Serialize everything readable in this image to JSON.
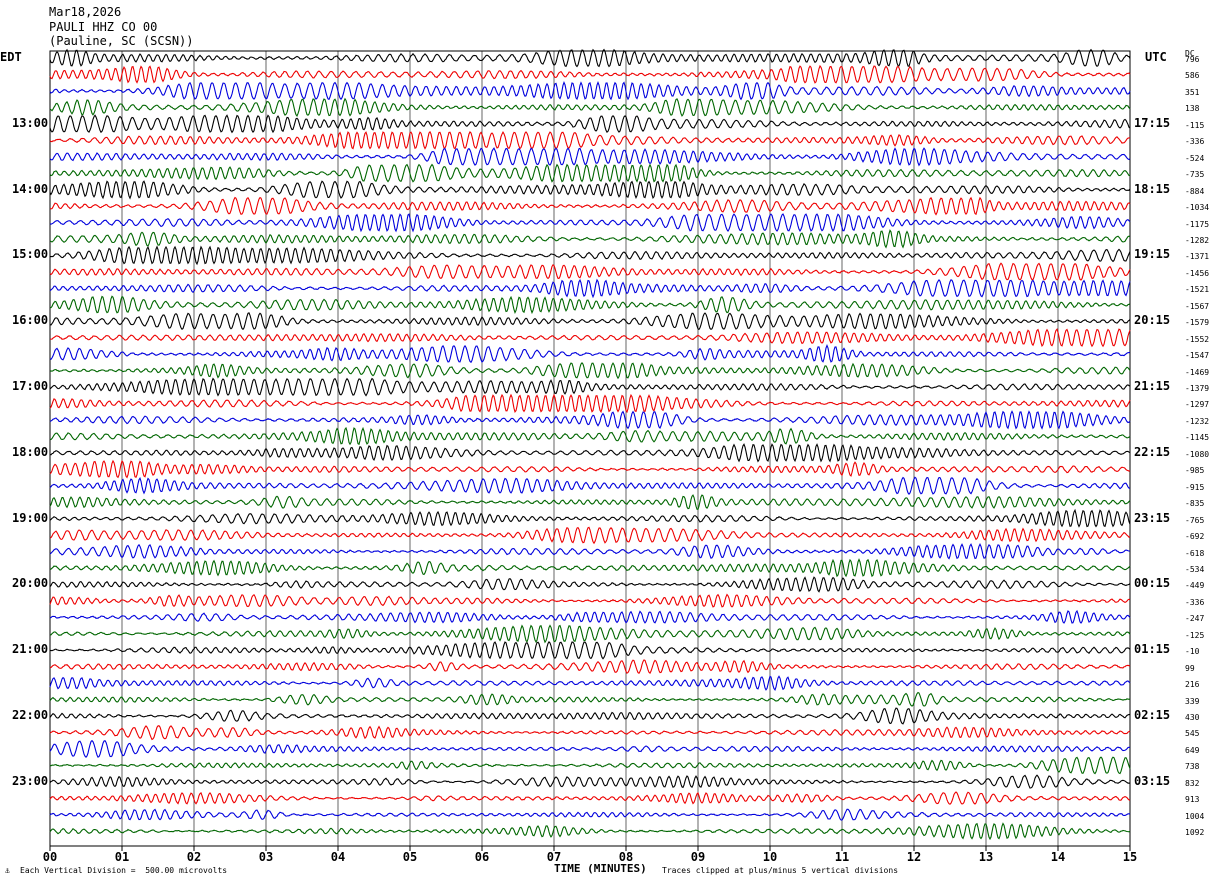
{
  "header": {
    "date": "Mar18,2026",
    "station": "PAULI HHZ CO 00",
    "location": "(Pauline, SC (SCSN))"
  },
  "left_tz": "EDT",
  "right_tz": "UTC",
  "dc_header": "DC",
  "footer": {
    "scale_note": "Each Vertical Division =  500.00 microvolts",
    "clip_note": "Traces clipped at plus/minus 5 vertical divisions"
  },
  "chart_data": {
    "type": "line",
    "title": "",
    "xlabel": "TIME (MINUTES)",
    "ylabel": "",
    "xlim": [
      0,
      15
    ],
    "x_ticks": [
      "00",
      "01",
      "02",
      "03",
      "04",
      "05",
      "06",
      "07",
      "08",
      "09",
      "10",
      "11",
      "12",
      "13",
      "14",
      "15"
    ],
    "grid": true,
    "trace_colors": [
      "#000000",
      "#ee0000",
      "#0000dd",
      "#006600"
    ],
    "left_time_labels": [
      "13:00",
      "14:00",
      "15:00",
      "16:00",
      "17:00",
      "18:00",
      "19:00",
      "20:00",
      "21:00",
      "22:00",
      "23:00"
    ],
    "right_time_labels": [
      "17:15",
      "18:15",
      "19:15",
      "20:15",
      "21:15",
      "22:15",
      "23:15",
      "00:15",
      "01:15",
      "02:15",
      "03:15"
    ],
    "dc_offsets": [
      796,
      586,
      351,
      138,
      -115,
      -336,
      -524,
      -735,
      -884,
      -1034,
      -1175,
      -1282,
      -1371,
      -1456,
      -1521,
      -1567,
      -1579,
      -1552,
      -1547,
      -1469,
      -1379,
      -1297,
      -1232,
      -1145,
      -1080,
      -985,
      -915,
      -835,
      -765,
      -692,
      -618,
      -534,
      -449,
      -336,
      -247,
      -125,
      -10,
      99,
      216,
      339,
      430,
      545,
      649,
      738,
      832,
      913,
      1004,
      1092
    ],
    "trace_count": 48,
    "minutes_per_trace": 15
  }
}
